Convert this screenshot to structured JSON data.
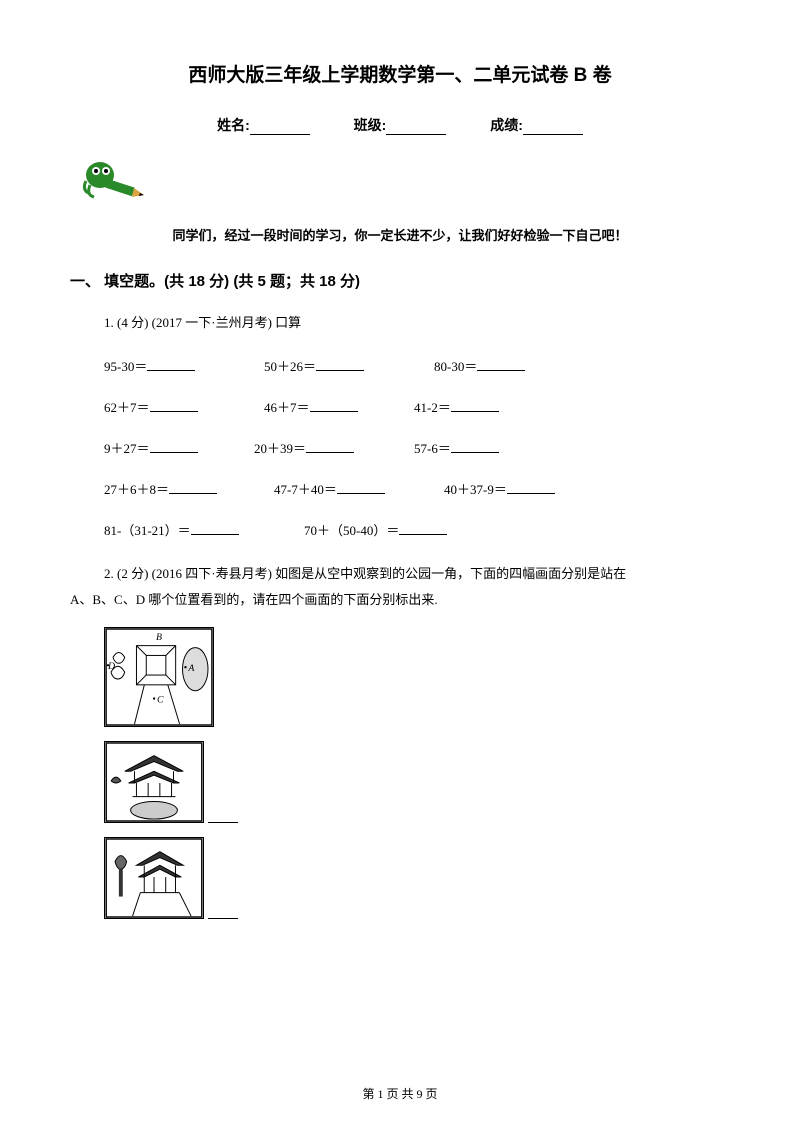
{
  "title": "西师大版三年级上学期数学第一、二单元试卷 B 卷",
  "info": {
    "name_label": "姓名:",
    "class_label": "班级:",
    "score_label": "成绩:"
  },
  "encourage": "同学们，经过一段时间的学习，你一定长进不少，让我们好好检验一下自己吧！",
  "section1": "一、 填空题。(共 18 分)  (共 5 题；共 18 分)",
  "q1": {
    "stem": "1.  (4 分)  (2017 一下·兰州月考) 口算"
  },
  "rows": [
    {
      "a": "95-30＝",
      "b": "50＋26＝",
      "c": "80-30＝",
      "aw": 160,
      "bw": 170,
      "cw": 140
    },
    {
      "a": "62＋7＝",
      "b": "46＋7＝",
      "c": "41-2＝",
      "aw": 160,
      "bw": 150,
      "cw": 140
    },
    {
      "a": "9＋27＝",
      "b": "20＋39＝",
      "c": "57-6＝",
      "aw": 150,
      "bw": 160,
      "cw": 140
    },
    {
      "a": "27＋6＋8＝",
      "b": "47-7＋40＝",
      "c": "40＋37-9＝",
      "aw": 170,
      "bw": 170,
      "cw": 140
    },
    {
      "a": "81-（31-21）＝",
      "b": "70＋（50-40）＝",
      "c": "",
      "aw": 200,
      "bw": 180,
      "cw": 0
    }
  ],
  "q2": {
    "line1": "2.    (2 分)    (2016 四下·寿县月考)     如图是从空中观察到的公园一角，下面的四幅画面分别是站在",
    "line2": "A、B、C、D 哪个位置看到的，请在四个画面的下面分别标出来."
  },
  "footer": "第 1 页 共 9 页",
  "colors": {
    "pencil_body": "#2a8a2a",
    "pencil_tip": "#d9a441",
    "eye_white": "#fff"
  }
}
